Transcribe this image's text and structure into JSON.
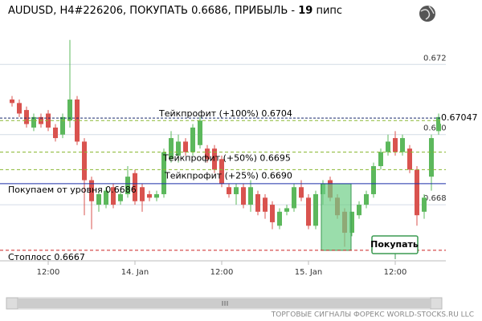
{
  "chart_data": {
    "type": "candlestick",
    "title": "AUDUSD, H4#226206, ПОКУПАТЬ 0.6686, ПРИБЫЛЬ - ",
    "profit_pips": 19,
    "title_unit": " пипс",
    "footer": "ТОРГОВЫЕ СИГНАЛЫ ФОРЕКС WORLD-STOCKS.RU LLC",
    "button": "Покупать",
    "categories": [
      null,
      null,
      null,
      null,
      null,
      "12:00",
      null,
      null,
      null,
      null,
      null,
      null,
      null,
      null,
      null,
      null,
      null,
      "14. Jan",
      null,
      null,
      null,
      null,
      null,
      null,
      null,
      null,
      null,
      null,
      null,
      "12:00",
      null,
      null,
      null,
      null,
      null,
      null,
      null,
      null,
      null,
      null,
      null,
      "15. Jan",
      null,
      null,
      null,
      null,
      null,
      null,
      null,
      null,
      null,
      null,
      null,
      "12:00",
      null,
      null,
      null,
      null,
      null,
      null
    ],
    "open": [
      0.671,
      0.6709,
      0.6707,
      0.6702,
      0.6705,
      0.6706,
      0.6702,
      0.67,
      0.6704,
      0.671,
      0.6698,
      0.6687,
      0.668,
      0.668,
      0.6685,
      0.6681,
      0.6683,
      0.6689,
      0.6685,
      0.6683,
      0.6682,
      0.6683,
      0.6693,
      0.6694,
      0.6698,
      0.6695,
      0.6697,
      0.6696,
      0.6696,
      0.6693,
      0.6685,
      0.6683,
      0.6685,
      0.668,
      0.6683,
      0.6682,
      0.668,
      0.6674,
      0.6678,
      0.6679,
      0.6685,
      0.6682,
      0.6674,
      0.6683,
      0.6687,
      0.6682,
      0.6678,
      0.6672,
      0.6677,
      0.668,
      0.6683,
      0.6691,
      0.6695,
      0.6699,
      0.6695,
      0.6696,
      0.669,
      0.6678,
      0.6688,
      0.6701
    ],
    "high": [
      0.6711,
      0.671,
      0.6708,
      0.6706,
      0.6706,
      0.6707,
      0.6703,
      0.6706,
      0.6727,
      0.6711,
      0.6699,
      0.6688,
      0.6684,
      0.6685,
      0.6686,
      0.6684,
      0.6691,
      0.669,
      0.6686,
      0.6684,
      0.6684,
      0.6696,
      0.6701,
      0.67,
      0.6699,
      0.6703,
      0.6705,
      0.6697,
      0.6697,
      0.6694,
      0.6686,
      0.6686,
      0.6686,
      0.6687,
      0.6684,
      0.6683,
      0.6681,
      0.6679,
      0.668,
      0.6686,
      0.6687,
      0.6683,
      0.6684,
      0.6687,
      0.6688,
      0.6683,
      0.6679,
      0.6678,
      0.6681,
      0.6684,
      0.6692,
      0.6696,
      0.67,
      0.6701,
      0.67,
      0.6697,
      0.6691,
      0.6683,
      0.67,
      0.6706
    ],
    "low": [
      0.6708,
      0.6705,
      0.6702,
      0.6701,
      0.6702,
      0.6701,
      0.6698,
      0.6699,
      0.6702,
      0.6697,
      0.6677,
      0.6673,
      0.6678,
      0.6679,
      0.6679,
      0.668,
      0.6682,
      0.668,
      0.6678,
      0.6681,
      0.6681,
      0.6682,
      0.6692,
      0.6692,
      0.6694,
      0.6694,
      0.6696,
      0.6692,
      0.6689,
      0.6685,
      0.6682,
      0.668,
      0.6679,
      0.6678,
      0.6677,
      0.6676,
      0.6673,
      0.6673,
      0.6677,
      0.6678,
      0.6681,
      0.6673,
      0.6673,
      0.668,
      0.6681,
      0.6676,
      0.6668,
      0.6671,
      0.6676,
      0.6679,
      0.6682,
      0.669,
      0.6694,
      0.6694,
      0.6694,
      0.6689,
      0.6674,
      0.6676,
      0.6684,
      0.67
    ],
    "close": [
      0.6709,
      0.6706,
      0.6703,
      0.6705,
      0.6703,
      0.6702,
      0.6699,
      0.6705,
      0.671,
      0.6698,
      0.6687,
      0.6681,
      0.6683,
      0.6684,
      0.668,
      0.6683,
      0.6688,
      0.6681,
      0.6681,
      0.6682,
      0.6683,
      0.6695,
      0.6699,
      0.6698,
      0.6695,
      0.6702,
      0.6704,
      0.6693,
      0.669,
      0.6686,
      0.6683,
      0.6685,
      0.668,
      0.6685,
      0.6678,
      0.6678,
      0.6675,
      0.6678,
      0.6679,
      0.6685,
      0.6682,
      0.6674,
      0.6683,
      0.6686,
      0.6682,
      0.6677,
      0.6672,
      0.6678,
      0.668,
      0.6683,
      0.6691,
      0.6695,
      0.6698,
      0.6695,
      0.6699,
      0.669,
      0.6677,
      0.6682,
      0.6699,
      0.6705
    ],
    "up_color": "#5cb85c",
    "down_color": "#d9534f",
    "ylim": [
      0.6664,
      0.67338
    ],
    "yticks": [
      {
        "value": 0.668,
        "label": "0.668"
      },
      {
        "value": 0.67,
        "label": "0.670"
      },
      {
        "value": 0.672,
        "label": "0.672"
      }
    ],
    "grid": true,
    "levels": [
      {
        "label": "Тейкпрофит (+100%) 0.6704",
        "value": 0.6704,
        "color": "#8ab833",
        "dashed": true
      },
      {
        "label": "Тейкпрофит (+50%) 0.6695",
        "value": 0.6695,
        "color": "#8ab833",
        "dashed": true
      },
      {
        "label": "Тейкпрофит (+25%) 0.6690",
        "value": 0.669,
        "color": "#8ab833",
        "dashed": true
      },
      {
        "label": "Покупаем от уровня 0.6686",
        "value": 0.6686,
        "color": "#1c2fa8",
        "dashed": false
      },
      {
        "label": "Стоплосс 0.6667",
        "value": 0.6667,
        "color": "#cc2222",
        "dashed": true
      }
    ],
    "current_price": {
      "label": "0.67047",
      "value": 0.67047,
      "color": "#1a2a6c"
    }
  }
}
